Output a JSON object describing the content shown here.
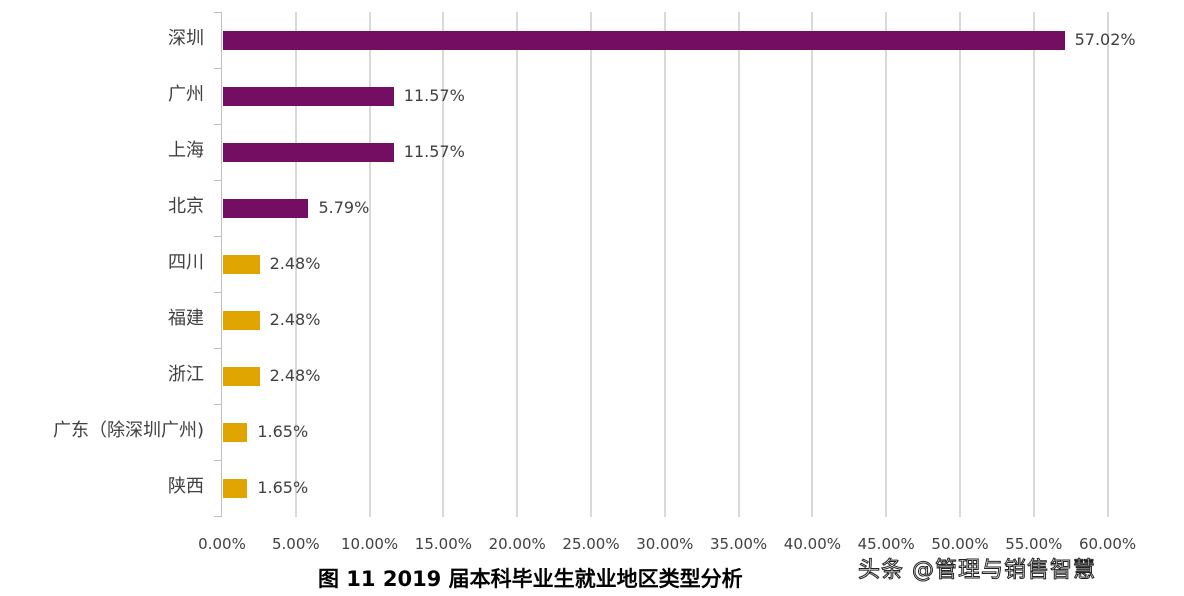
{
  "chart_data": {
    "type": "bar",
    "orientation": "horizontal",
    "title": "图 11  2019 届本科毕业生就业地区类型分析",
    "xlabel": "",
    "ylabel": "",
    "xlim": [
      0,
      60
    ],
    "grid": true,
    "legend": null,
    "x_ticks": [
      "0.00%",
      "5.00%",
      "10.00%",
      "15.00%",
      "20.00%",
      "25.00%",
      "30.00%",
      "35.00%",
      "40.00%",
      "45.00%",
      "50.00%",
      "55.00%",
      "60.00%"
    ],
    "categories": [
      "深圳",
      "广州",
      "上海",
      "北京",
      "四川",
      "福建",
      "浙江",
      "广东（除深圳广州)",
      "陕西"
    ],
    "values": [
      57.02,
      11.57,
      11.57,
      5.79,
      2.48,
      2.48,
      2.48,
      1.65,
      1.65
    ],
    "value_labels": [
      "57.02%",
      "11.57%",
      "11.57%",
      "5.79%",
      "2.48%",
      "2.48%",
      "2.48%",
      "1.65%",
      "1.65%"
    ],
    "colors": [
      "#730e63",
      "#730e63",
      "#730e63",
      "#730e63",
      "#e0a500",
      "#e0a500",
      "#e0a500",
      "#e0a500",
      "#e0a500"
    ]
  },
  "colors": {
    "primary": "#730e63",
    "secondary": "#e0a500",
    "grid": "#d9d9d9"
  },
  "watermark": "头条 @管理与销售智慧"
}
